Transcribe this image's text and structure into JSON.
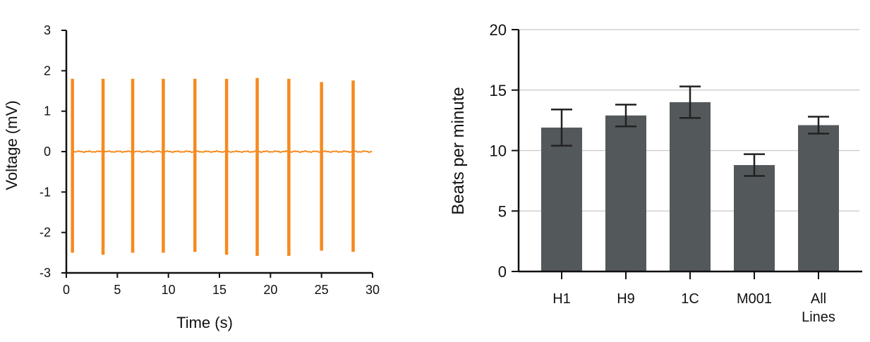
{
  "colors": {
    "trace": "#f58a1f",
    "bar": "#53585b",
    "axis": "#111111",
    "grid": "#c8c8c8",
    "error": "#222222"
  },
  "chart_data": [
    {
      "type": "line",
      "title": "",
      "xlabel": "Time (s)",
      "ylabel": "Voltage (mV)",
      "xlim": [
        0,
        30
      ],
      "ylim": [
        -3,
        3
      ],
      "x_ticks": [
        0,
        5,
        10,
        15,
        20,
        25,
        30
      ],
      "y_ticks": [
        -3,
        -2,
        -1,
        0,
        1,
        2,
        3
      ],
      "x_tick_labels": [
        "0",
        "5",
        "10",
        "15",
        "20",
        "25",
        "30"
      ],
      "y_tick_labels": [
        "-3",
        "-2",
        "-1",
        "0",
        "1",
        "2",
        "3"
      ],
      "baseline": 0,
      "spikes": [
        {
          "t": 0.6,
          "max": 1.8,
          "min": -2.5
        },
        {
          "t": 3.6,
          "max": 1.8,
          "min": -2.55
        },
        {
          "t": 6.5,
          "max": 1.8,
          "min": -2.5
        },
        {
          "t": 9.5,
          "max": 1.8,
          "min": -2.5
        },
        {
          "t": 12.6,
          "max": 1.8,
          "min": -2.48
        },
        {
          "t": 15.7,
          "max": 1.8,
          "min": -2.55
        },
        {
          "t": 18.7,
          "max": 1.82,
          "min": -2.58
        },
        {
          "t": 21.8,
          "max": 1.8,
          "min": -2.58
        },
        {
          "t": 25.0,
          "max": 1.72,
          "min": -2.45
        },
        {
          "t": 28.1,
          "max": 1.76,
          "min": -2.48
        }
      ],
      "grid": false
    },
    {
      "type": "bar",
      "title": "",
      "xlabel": "",
      "ylabel": "Beats per minute",
      "ylim": [
        0,
        20
      ],
      "y_ticks": [
        0,
        5,
        10,
        15,
        20
      ],
      "y_tick_labels": [
        "0",
        "5",
        "10",
        "15",
        "20"
      ],
      "categories": [
        {
          "line1": "H1",
          "line2": ""
        },
        {
          "line1": "H9",
          "line2": ""
        },
        {
          "line1": "1C",
          "line2": ""
        },
        {
          "line1": "M001",
          "line2": ""
        },
        {
          "line1": "All",
          "line2": "Lines"
        }
      ],
      "values": [
        11.9,
        12.9,
        14.0,
        8.8,
        12.1
      ],
      "errors": [
        1.5,
        0.9,
        1.3,
        0.9,
        0.7
      ],
      "grid": true
    }
  ]
}
